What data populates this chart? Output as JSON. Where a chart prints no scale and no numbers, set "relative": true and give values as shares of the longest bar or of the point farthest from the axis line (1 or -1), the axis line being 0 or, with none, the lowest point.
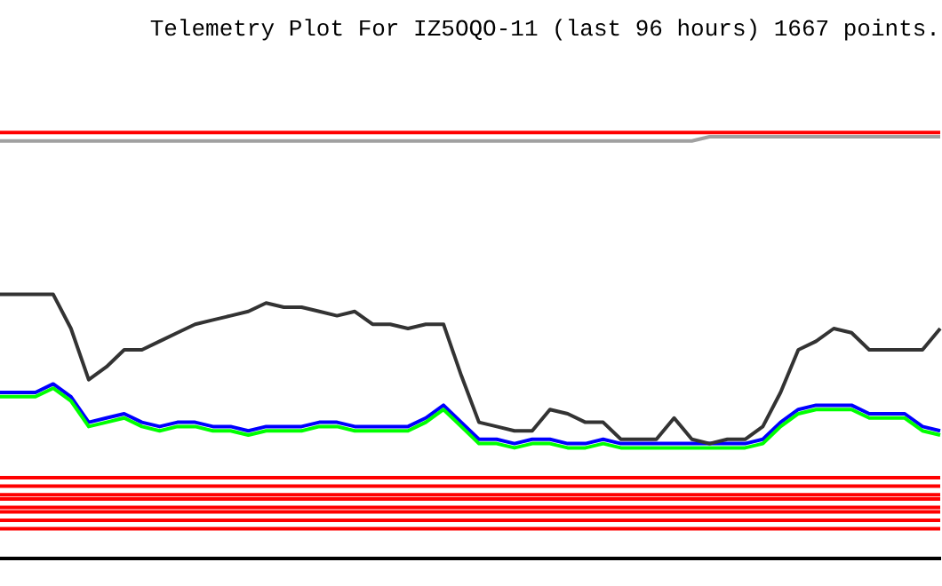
{
  "chart_data": {
    "type": "line",
    "title": "Telemetry Plot For IZ5OQO-11 (last 96 hours) 1667 points.",
    "relative": true,
    "grid": false,
    "legend": false,
    "marker": "none",
    "line_style": "solid",
    "categories": [
      null,
      null,
      null,
      null,
      null,
      null,
      null,
      null,
      null,
      null,
      null,
      null,
      null,
      null,
      null,
      null,
      null,
      null,
      null,
      null,
      null,
      null,
      null,
      null,
      null,
      null,
      null,
      null,
      null,
      null,
      null,
      null,
      null,
      null,
      null,
      null,
      null,
      null,
      null,
      null,
      null,
      null,
      null,
      null,
      null,
      null,
      null,
      null,
      null,
      null,
      null,
      null,
      null,
      null
    ],
    "series": [
      {
        "color": "#ff0000",
        "values": [
          1,
          1,
          1,
          1,
          1,
          1,
          1,
          1,
          1,
          1,
          1,
          1,
          1,
          1,
          1,
          1,
          1,
          1,
          1,
          1,
          1,
          1,
          1,
          1,
          1,
          1,
          1,
          1,
          1,
          1,
          1,
          1,
          1,
          1,
          1,
          1,
          1,
          1,
          1,
          1,
          1,
          1,
          1,
          1,
          1,
          1,
          1,
          1,
          1,
          1,
          1,
          1,
          1,
          1
        ]
      },
      {
        "color": "#a0a0a0",
        "values": [
          0.98,
          0.98,
          0.98,
          0.98,
          0.98,
          0.98,
          0.98,
          0.98,
          0.98,
          0.98,
          0.98,
          0.98,
          0.98,
          0.98,
          0.98,
          0.98,
          0.98,
          0.98,
          0.98,
          0.98,
          0.98,
          0.98,
          0.98,
          0.98,
          0.98,
          0.98,
          0.98,
          0.98,
          0.98,
          0.98,
          0.98,
          0.98,
          0.98,
          0.98,
          0.98,
          0.98,
          0.98,
          0.98,
          0.98,
          0.98,
          0.99,
          0.99,
          0.99,
          0.99,
          0.99,
          0.99,
          0.99,
          0.99,
          0.99,
          0.99,
          0.99,
          0.99,
          0.99,
          0.99
        ]
      },
      {
        "color": "#333333",
        "values": [
          0.62,
          0.62,
          0.62,
          0.62,
          0.54,
          0.42,
          0.45,
          0.49,
          0.49,
          0.51,
          0.53,
          0.55,
          0.56,
          0.57,
          0.58,
          0.6,
          0.59,
          0.59,
          0.58,
          0.57,
          0.58,
          0.55,
          0.55,
          0.54,
          0.55,
          0.55,
          0.43,
          0.32,
          0.31,
          0.3,
          0.3,
          0.35,
          0.34,
          0.32,
          0.32,
          0.28,
          0.28,
          0.28,
          0.33,
          0.28,
          0.27,
          0.28,
          0.28,
          0.31,
          0.39,
          0.49,
          0.51,
          0.54,
          0.53,
          0.49,
          0.49,
          0.49,
          0.49,
          0.54
        ]
      },
      {
        "color": "#00ff00",
        "values": [
          0.38,
          0.38,
          0.38,
          0.4,
          0.37,
          0.31,
          0.32,
          0.33,
          0.31,
          0.3,
          0.31,
          0.31,
          0.3,
          0.3,
          0.29,
          0.3,
          0.3,
          0.3,
          0.31,
          0.31,
          0.3,
          0.3,
          0.3,
          0.3,
          0.32,
          0.35,
          0.31,
          0.27,
          0.27,
          0.26,
          0.27,
          0.27,
          0.26,
          0.26,
          0.27,
          0.26,
          0.26,
          0.26,
          0.26,
          0.26,
          0.26,
          0.26,
          0.26,
          0.27,
          0.31,
          0.34,
          0.35,
          0.35,
          0.35,
          0.33,
          0.33,
          0.33,
          0.3,
          0.29
        ]
      },
      {
        "color": "#0000ff",
        "values": [
          0.39,
          0.39,
          0.39,
          0.41,
          0.38,
          0.32,
          0.33,
          0.34,
          0.32,
          0.31,
          0.32,
          0.32,
          0.31,
          0.31,
          0.3,
          0.31,
          0.31,
          0.31,
          0.32,
          0.32,
          0.31,
          0.31,
          0.31,
          0.31,
          0.33,
          0.36,
          0.32,
          0.28,
          0.28,
          0.27,
          0.28,
          0.28,
          0.27,
          0.27,
          0.28,
          0.27,
          0.27,
          0.27,
          0.27,
          0.27,
          0.27,
          0.27,
          0.27,
          0.28,
          0.32,
          0.35,
          0.36,
          0.36,
          0.36,
          0.34,
          0.34,
          0.34,
          0.31,
          0.3
        ]
      },
      {
        "color": "#ff0000",
        "values": [
          0.19,
          0.19,
          0.19,
          0.19,
          0.19,
          0.19,
          0.19,
          0.19,
          0.19,
          0.19,
          0.19,
          0.19,
          0.19,
          0.19,
          0.19,
          0.19,
          0.19,
          0.19,
          0.19,
          0.19,
          0.19,
          0.19,
          0.19,
          0.19,
          0.19,
          0.19,
          0.19,
          0.19,
          0.19,
          0.19,
          0.19,
          0.19,
          0.19,
          0.19,
          0.19,
          0.19,
          0.19,
          0.19,
          0.19,
          0.19,
          0.19,
          0.19,
          0.19,
          0.19,
          0.19,
          0.19,
          0.19,
          0.19,
          0.19,
          0.19,
          0.19,
          0.19,
          0.19,
          0.19
        ]
      },
      {
        "color": "#ff0000",
        "values": [
          0.17,
          0.17,
          0.17,
          0.17,
          0.17,
          0.17,
          0.17,
          0.17,
          0.17,
          0.17,
          0.17,
          0.17,
          0.17,
          0.17,
          0.17,
          0.17,
          0.17,
          0.17,
          0.17,
          0.17,
          0.17,
          0.17,
          0.17,
          0.17,
          0.17,
          0.17,
          0.17,
          0.17,
          0.17,
          0.17,
          0.17,
          0.17,
          0.17,
          0.17,
          0.17,
          0.17,
          0.17,
          0.17,
          0.17,
          0.17,
          0.17,
          0.17,
          0.17,
          0.17,
          0.17,
          0.17,
          0.17,
          0.17,
          0.17,
          0.17,
          0.17,
          0.17,
          0.17,
          0.17
        ]
      },
      {
        "color": "#ff0000",
        "values": [
          0.15,
          0.15,
          0.15,
          0.15,
          0.15,
          0.15,
          0.15,
          0.15,
          0.15,
          0.15,
          0.15,
          0.15,
          0.15,
          0.15,
          0.15,
          0.15,
          0.15,
          0.15,
          0.15,
          0.15,
          0.15,
          0.15,
          0.15,
          0.15,
          0.15,
          0.15,
          0.15,
          0.15,
          0.15,
          0.15,
          0.15,
          0.15,
          0.15,
          0.15,
          0.15,
          0.15,
          0.15,
          0.15,
          0.15,
          0.15,
          0.15,
          0.15,
          0.15,
          0.15,
          0.15,
          0.15,
          0.15,
          0.15,
          0.15,
          0.15,
          0.15,
          0.15,
          0.15,
          0.15
        ]
      },
      {
        "color": "#ff0000",
        "values": [
          0.14,
          0.14,
          0.14,
          0.14,
          0.14,
          0.14,
          0.14,
          0.14,
          0.14,
          0.14,
          0.14,
          0.14,
          0.14,
          0.14,
          0.14,
          0.14,
          0.14,
          0.14,
          0.14,
          0.14,
          0.14,
          0.14,
          0.14,
          0.14,
          0.14,
          0.14,
          0.14,
          0.14,
          0.14,
          0.14,
          0.14,
          0.14,
          0.14,
          0.14,
          0.14,
          0.14,
          0.14,
          0.14,
          0.14,
          0.14,
          0.14,
          0.14,
          0.14,
          0.14,
          0.14,
          0.14,
          0.14,
          0.14,
          0.14,
          0.14,
          0.14,
          0.14,
          0.14,
          0.14
        ]
      },
      {
        "color": "#ff0000",
        "values": [
          0.12,
          0.12,
          0.12,
          0.12,
          0.12,
          0.12,
          0.12,
          0.12,
          0.12,
          0.12,
          0.12,
          0.12,
          0.12,
          0.12,
          0.12,
          0.12,
          0.12,
          0.12,
          0.12,
          0.12,
          0.12,
          0.12,
          0.12,
          0.12,
          0.12,
          0.12,
          0.12,
          0.12,
          0.12,
          0.12,
          0.12,
          0.12,
          0.12,
          0.12,
          0.12,
          0.12,
          0.12,
          0.12,
          0.12,
          0.12,
          0.12,
          0.12,
          0.12,
          0.12,
          0.12,
          0.12,
          0.12,
          0.12,
          0.12,
          0.12,
          0.12,
          0.12,
          0.12,
          0.12
        ]
      },
      {
        "color": "#ff0000",
        "values": [
          0.11,
          0.11,
          0.11,
          0.11,
          0.11,
          0.11,
          0.11,
          0.11,
          0.11,
          0.11,
          0.11,
          0.11,
          0.11,
          0.11,
          0.11,
          0.11,
          0.11,
          0.11,
          0.11,
          0.11,
          0.11,
          0.11,
          0.11,
          0.11,
          0.11,
          0.11,
          0.11,
          0.11,
          0.11,
          0.11,
          0.11,
          0.11,
          0.11,
          0.11,
          0.11,
          0.11,
          0.11,
          0.11,
          0.11,
          0.11,
          0.11,
          0.11,
          0.11,
          0.11,
          0.11,
          0.11,
          0.11,
          0.11,
          0.11,
          0.11,
          0.11,
          0.11,
          0.11,
          0.11
        ]
      },
      {
        "color": "#ff0000",
        "values": [
          0.09,
          0.09,
          0.09,
          0.09,
          0.09,
          0.09,
          0.09,
          0.09,
          0.09,
          0.09,
          0.09,
          0.09,
          0.09,
          0.09,
          0.09,
          0.09,
          0.09,
          0.09,
          0.09,
          0.09,
          0.09,
          0.09,
          0.09,
          0.09,
          0.09,
          0.09,
          0.09,
          0.09,
          0.09,
          0.09,
          0.09,
          0.09,
          0.09,
          0.09,
          0.09,
          0.09,
          0.09,
          0.09,
          0.09,
          0.09,
          0.09,
          0.09,
          0.09,
          0.09,
          0.09,
          0.09,
          0.09,
          0.09,
          0.09,
          0.09,
          0.09,
          0.09,
          0.09,
          0.09
        ]
      },
      {
        "color": "#ff0000",
        "values": [
          0.07,
          0.07,
          0.07,
          0.07,
          0.07,
          0.07,
          0.07,
          0.07,
          0.07,
          0.07,
          0.07,
          0.07,
          0.07,
          0.07,
          0.07,
          0.07,
          0.07,
          0.07,
          0.07,
          0.07,
          0.07,
          0.07,
          0.07,
          0.07,
          0.07,
          0.07,
          0.07,
          0.07,
          0.07,
          0.07,
          0.07,
          0.07,
          0.07,
          0.07,
          0.07,
          0.07,
          0.07,
          0.07,
          0.07,
          0.07,
          0.07,
          0.07,
          0.07,
          0.07,
          0.07,
          0.07,
          0.07,
          0.07,
          0.07,
          0.07,
          0.07,
          0.07,
          0.07,
          0.07
        ]
      }
    ]
  }
}
